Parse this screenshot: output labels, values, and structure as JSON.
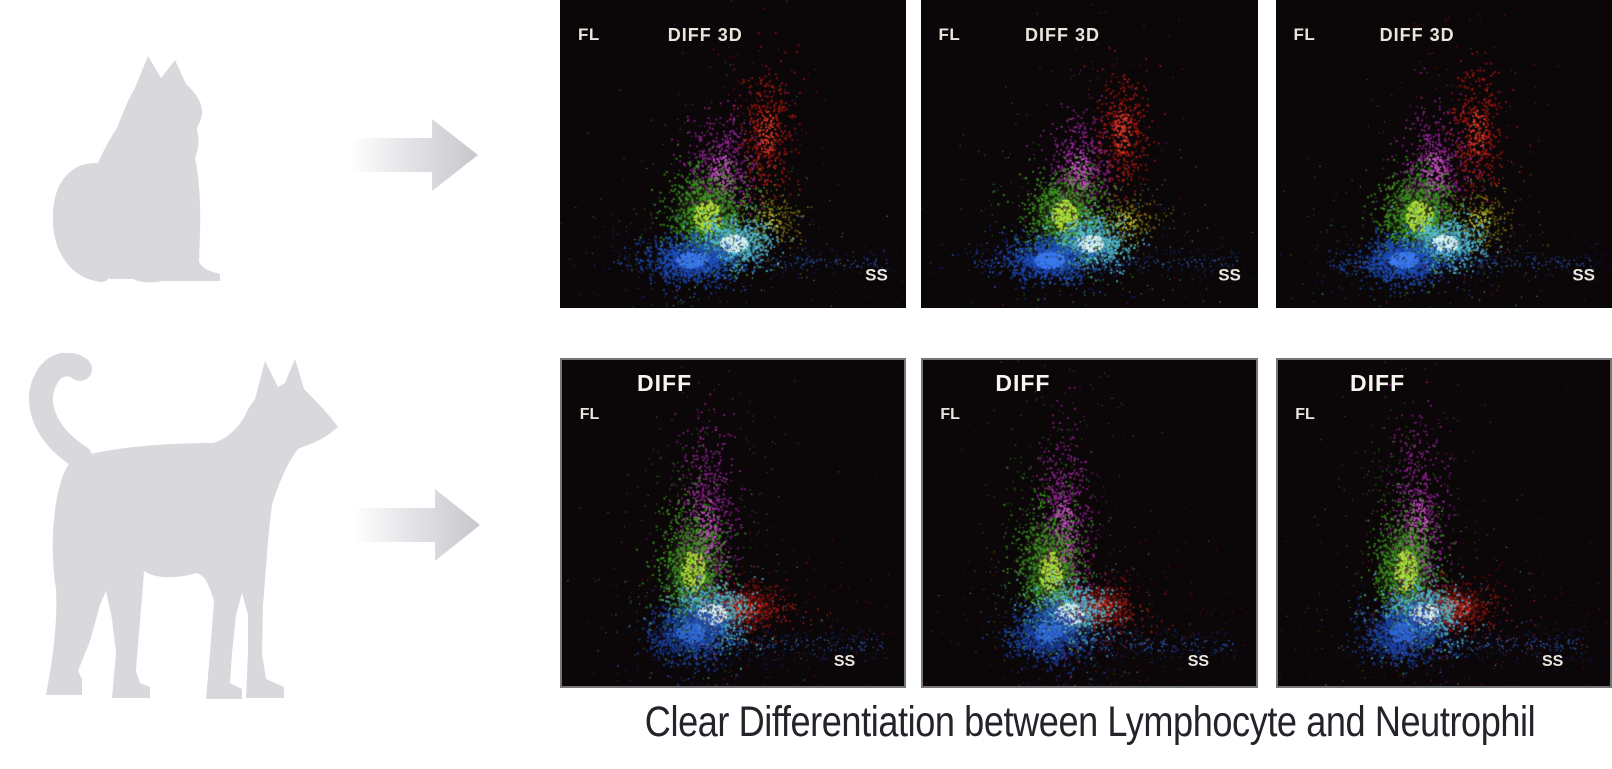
{
  "caption": "Clear Differentiation between Lymphocyte and Neutrophil",
  "left_column": {
    "figures": [
      "cat-silhouette",
      "dog-silhouette"
    ],
    "arrow_icon": "right-arrow",
    "silhouette_color": "#d9d9dd",
    "arrow_color_start": "#ffffff",
    "arrow_color_end": "#c6c6cc"
  },
  "colors": {
    "panel_background": "#0b0608",
    "axis": "#dedbd4",
    "label_text": "#e9e6dd",
    "caption_text": "#25222a",
    "bottom_panel_border": "#75757a"
  },
  "rows": [
    {
      "animal": "cat",
      "chart": 0,
      "panel_count": 3
    },
    {
      "animal": "dog",
      "chart": 1,
      "panel_count": 3
    }
  ],
  "chart_data": [
    {
      "type": "scatter",
      "title": "DIFF 3D",
      "xlabel": "SS",
      "ylabel": "FL",
      "axes": "L-shape, unlabeled ticks, FL vertical vs SS horizontal",
      "background": "#0b0608",
      "clusters": [
        {
          "name": "debris-floor",
          "color": "#16357e",
          "core": "#2c55b0",
          "cx": 0.55,
          "cy": 0.852,
          "rx": 0.4,
          "ry": 0.022,
          "count": 280,
          "dist": "uniform",
          "size": 1.4,
          "outliers": 0.3
        },
        {
          "name": "red-cluster",
          "color": "#b81a12",
          "core": "#e43a26",
          "cx": 0.597,
          "cy": 0.425,
          "rx": 0.038,
          "ry": 0.1,
          "count": 420,
          "size": 1.8,
          "outliers": 0.2
        },
        {
          "name": "magenta-cluster",
          "color": "#a228a8",
          "core": "#cf52cc",
          "cx": 0.468,
          "cy": 0.553,
          "rx": 0.048,
          "ry": 0.09,
          "count": 500,
          "size": 1.8,
          "outliers": 0.22
        },
        {
          "name": "yellow-cluster",
          "color": "#8f8f14",
          "core": "#c9c932",
          "cx": 0.605,
          "cy": 0.714,
          "rx": 0.046,
          "ry": 0.04,
          "count": 230,
          "size": 1.6,
          "outliers": 0.3
        },
        {
          "name": "green-cluster",
          "color": "#3f9e22",
          "core": "#aee23a",
          "cx": 0.425,
          "cy": 0.7,
          "rx": 0.058,
          "ry": 0.075,
          "count": 900,
          "size": 2,
          "glow": true,
          "outliers": 0.15
        },
        {
          "name": "cyan-cluster",
          "color": "#55c2da",
          "core": "#d6f4f8",
          "cx": 0.5,
          "cy": 0.788,
          "rx": 0.056,
          "ry": 0.04,
          "count": 650,
          "size": 2,
          "glow": true,
          "outliers": 0.15
        },
        {
          "name": "blue-cluster",
          "color": "#1d4fc0",
          "core": "#3b7af0",
          "cx": 0.378,
          "cy": 0.842,
          "rx": 0.064,
          "ry": 0.038,
          "count": 850,
          "size": 2,
          "glow": true,
          "outliers": 0.18
        }
      ]
    },
    {
      "type": "scatter",
      "title": "DIFF",
      "xlabel": "SS",
      "ylabel": "FL",
      "axes": "L-shape, unlabeled ticks, FL vertical vs SS horizontal",
      "background": "#0b0608",
      "clusters": [
        {
          "name": "debris-floor",
          "color": "#14307a",
          "core": "#2c55b0",
          "cx": 0.6,
          "cy": 0.872,
          "rx": 0.34,
          "ry": 0.026,
          "count": 320,
          "dist": "uniform",
          "size": 1.4,
          "outliers": 0.3
        },
        {
          "name": "red-spray",
          "color": "#8e130e",
          "core": "#c03020",
          "cx": 0.68,
          "cy": 0.79,
          "rx": 0.19,
          "ry": 0.11,
          "count": 90,
          "size": 1.3,
          "outliers": 0.5
        },
        {
          "name": "green-speckle",
          "color": "#2f8e1e",
          "core": "#57b02e",
          "cx": 0.375,
          "cy": 0.47,
          "rx": 0.052,
          "ry": 0.125,
          "count": 150,
          "size": 1.3,
          "outliers": 0.4
        },
        {
          "name": "magenta-cluster",
          "color": "#a226a6",
          "core": "#cc4ec8",
          "cx": 0.422,
          "cy": 0.53,
          "rx": 0.04,
          "ry": 0.155,
          "count": 720,
          "size": 1.8,
          "outliers": 0.25
        },
        {
          "name": "green-cluster",
          "color": "#3f9e22",
          "core": "#abe23a",
          "cx": 0.382,
          "cy": 0.645,
          "rx": 0.05,
          "ry": 0.092,
          "count": 800,
          "size": 2,
          "glow": true,
          "outliers": 0.12
        },
        {
          "name": "red-cluster",
          "color": "#aa1810",
          "core": "#e03626",
          "cx": 0.537,
          "cy": 0.758,
          "rx": 0.058,
          "ry": 0.04,
          "count": 330,
          "size": 1.8,
          "glow": true,
          "outliers": 0.25
        },
        {
          "name": "cyan-cluster",
          "color": "#55c2da",
          "core": "#d8f6f8",
          "cx": 0.437,
          "cy": 0.778,
          "rx": 0.062,
          "ry": 0.047,
          "count": 620,
          "size": 2,
          "glow": true,
          "outliers": 0.12
        },
        {
          "name": "blue-cluster",
          "color": "#1a44aa",
          "core": "#2e66d8",
          "cx": 0.374,
          "cy": 0.835,
          "rx": 0.06,
          "ry": 0.045,
          "count": 750,
          "size": 2,
          "glow": true,
          "outliers": 0.15
        }
      ]
    }
  ]
}
